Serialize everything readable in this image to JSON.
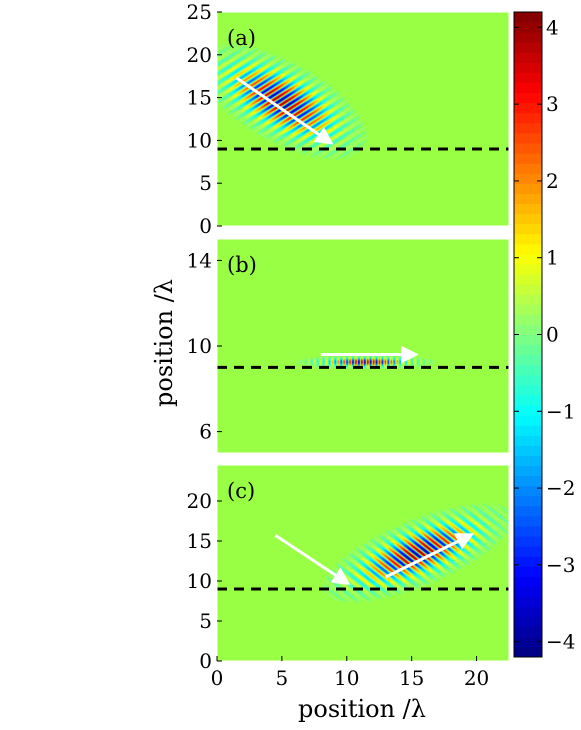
{
  "chart_data": {
    "type": "heatmap",
    "xlabel": "position /λ",
    "ylabel": "position /λ",
    "colorbar": {
      "range": [
        -4.2,
        4.2
      ],
      "ticks": [
        {
          "value": 4,
          "label": "4"
        },
        {
          "value": 3,
          "label": "3"
        },
        {
          "value": 2,
          "label": "2"
        },
        {
          "value": 1,
          "label": "1"
        },
        {
          "value": 0,
          "label": "0"
        },
        {
          "value": -1,
          "label": "−1"
        },
        {
          "value": -2,
          "label": "−2"
        },
        {
          "value": -3,
          "label": "−3"
        },
        {
          "value": -4,
          "label": "−4"
        }
      ]
    },
    "panels": [
      {
        "label": "(a)",
        "xlim": [
          0,
          22.5
        ],
        "ylim": [
          0,
          25
        ],
        "yticks": [
          0,
          5,
          10,
          15,
          20,
          25
        ],
        "xticks": [],
        "interface_y": 9,
        "arrows": [
          {
            "from": [
              1.5,
              17.3
            ],
            "to": [
              8.7,
              9.8
            ]
          }
        ],
        "beams": [
          {
            "cx": 5.0,
            "cy": 14.5,
            "len": 11.5,
            "width": 5.5,
            "angle_deg": -46,
            "amplitude": 4.2,
            "k": 1.25
          }
        ]
      },
      {
        "label": "(b)",
        "xlim": [
          0,
          22.5
        ],
        "ylim": [
          5,
          15
        ],
        "yticks": [
          6,
          10,
          14
        ],
        "xticks": [],
        "interface_y": 9,
        "arrows": [
          {
            "from": [
              8,
              9.6
            ],
            "to": [
              15.2,
              9.6
            ]
          }
        ],
        "beams": [
          {
            "cx": 11.5,
            "cy": 9.25,
            "len": 7.5,
            "width": 0.45,
            "angle_deg": 0,
            "amplitude": 4.0,
            "k": 2.2
          }
        ]
      },
      {
        "label": "(c)",
        "xlim": [
          0,
          22.5
        ],
        "ylim": [
          0,
          24.5
        ],
        "yticks": [
          0,
          5,
          10,
          15,
          20
        ],
        "xticks": [
          0,
          5,
          10,
          15,
          20
        ],
        "interface_y": 9,
        "arrows": [
          {
            "from": [
              4.5,
              15.7
            ],
            "to": [
              10,
              9.8
            ]
          },
          {
            "from": [
              13,
              10.5
            ],
            "to": [
              19.5,
              15.7
            ]
          }
        ],
        "beams": [
          {
            "cx": 15.5,
            "cy": 13.5,
            "len": 12,
            "width": 5,
            "angle_deg": 38,
            "amplitude": 4.2,
            "k": 1.25
          }
        ]
      }
    ]
  }
}
